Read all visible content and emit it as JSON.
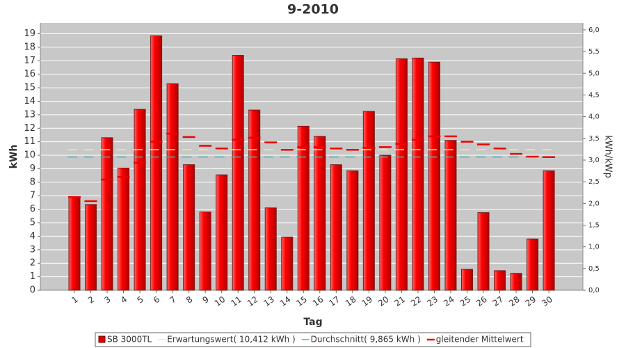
{
  "chart_data": {
    "type": "bar",
    "title": "9-2010",
    "x_label": "Tag",
    "y_label": "kWh",
    "y2_label": "kWh/kWp",
    "categories": [
      "1",
      "2",
      "3",
      "4",
      "5",
      "6",
      "7",
      "8",
      "9",
      "10",
      "11",
      "12",
      "13",
      "14",
      "15",
      "16",
      "17",
      "18",
      "19",
      "20",
      "21",
      "22",
      "23",
      "24",
      "25",
      "26",
      "27",
      "28",
      "29",
      "30"
    ],
    "series": [
      {
        "name": "SB 3000TL",
        "color": "#e00000",
        "type": "bar",
        "values": [
          6.9,
          6.35,
          11.3,
          9.05,
          13.4,
          18.85,
          15.3,
          9.3,
          5.8,
          8.55,
          17.4,
          13.35,
          6.1,
          3.95,
          12.15,
          11.4,
          9.3,
          8.85,
          13.25,
          10.0,
          17.15,
          17.2,
          16.9,
          11.1,
          1.55,
          5.75,
          1.45,
          1.25,
          3.8,
          8.85
        ]
      },
      {
        "name": "Erwartungswert( 10,412 kWh )",
        "color": "#f0f07a",
        "type": "hline",
        "value": 10.412
      },
      {
        "name": "Durchschnitt( 9,865 kWh )",
        "color": "#3cbcbc",
        "type": "hline",
        "value": 9.865
      },
      {
        "name": "gleitender Mittelwert",
        "color": "#ee0000",
        "type": "dash",
        "values": [
          6.9,
          6.6,
          8.2,
          8.4,
          9.45,
          11.0,
          11.6,
          11.35,
          10.7,
          10.5,
          11.15,
          11.3,
          10.95,
          10.4,
          10.6,
          10.6,
          10.5,
          10.4,
          10.55,
          10.6,
          10.85,
          11.15,
          11.4,
          11.4,
          11.0,
          10.8,
          10.5,
          10.1,
          9.9,
          9.86
        ]
      }
    ],
    "ylim": [
      0,
      19.8
    ],
    "yticks": [
      0,
      1,
      2,
      3,
      4,
      5,
      6,
      7,
      8,
      9,
      10,
      11,
      12,
      13,
      14,
      15,
      16,
      17,
      18,
      19
    ],
    "y2lim": [
      0,
      6.16
    ],
    "y2ticks": [
      {
        "value": 0,
        "label": "0,0"
      },
      {
        "value": 0.5,
        "label": "0,5"
      },
      {
        "value": 1,
        "label": "1,0"
      },
      {
        "value": 1.5,
        "label": "1,5"
      },
      {
        "value": 2,
        "label": "2,0"
      },
      {
        "value": 2.5,
        "label": "2,5"
      },
      {
        "value": 3,
        "label": "3,0"
      },
      {
        "value": 3.5,
        "label": "3,5"
      },
      {
        "value": 4,
        "label": "4,0"
      },
      {
        "value": 4.5,
        "label": "4,5"
      },
      {
        "value": 5,
        "label": "5,0"
      },
      {
        "value": 5.5,
        "label": "5,5"
      },
      {
        "value": 6,
        "label": "6,0"
      }
    ],
    "grid": true
  }
}
